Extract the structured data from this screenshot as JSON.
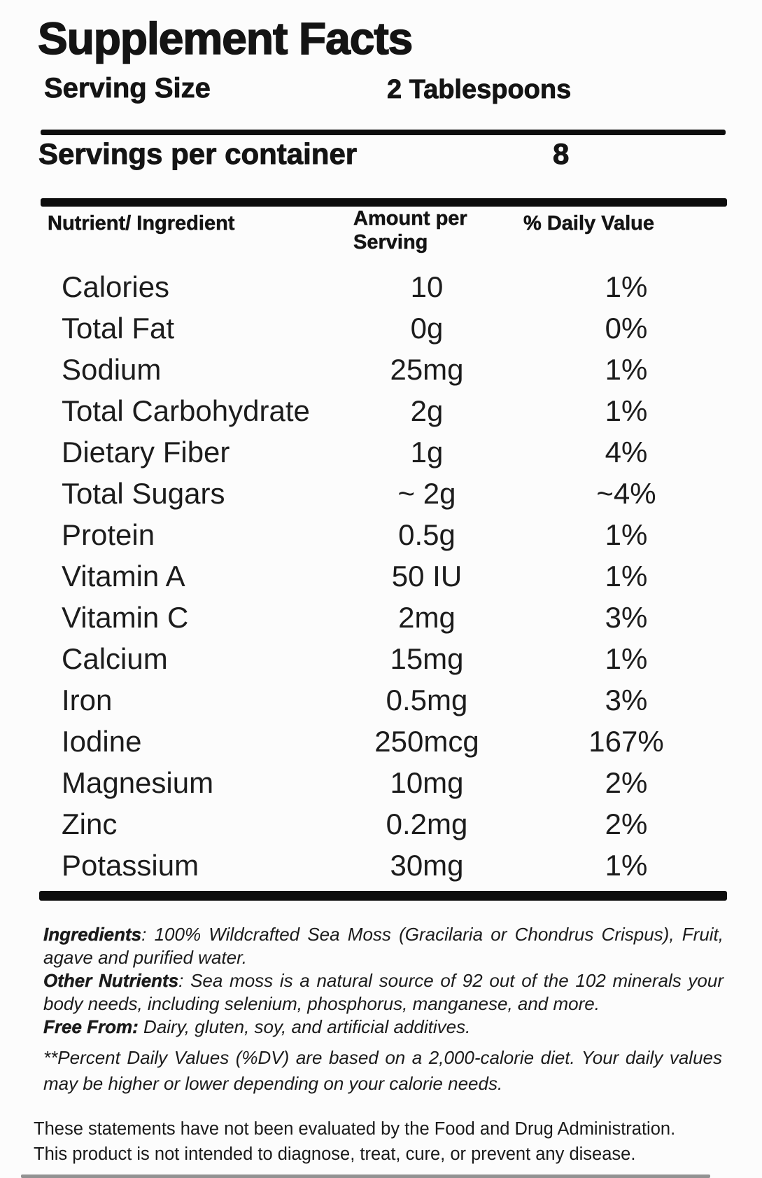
{
  "colors": {
    "background": "#fcfcfc",
    "text": "#141414",
    "bar": "#0d0d0d",
    "bottom_bar": "#6f6f6f"
  },
  "label": {
    "title": "Supplement Facts",
    "serving_size": {
      "label": "Serving Size",
      "value": "2 Tablespoons"
    },
    "servings_per_container": {
      "label": "Servings per container",
      "value": "8"
    },
    "table": {
      "columns": {
        "nutrient": "Nutrient/ Ingredient",
        "amount": "Amount per Serving",
        "daily_value": "% Daily Value"
      },
      "rows": [
        {
          "name": "Calories",
          "amount": "10",
          "dv": "1%"
        },
        {
          "name": "Total Fat",
          "amount": "0g",
          "dv": "0%"
        },
        {
          "name": "Sodium",
          "amount": "25mg",
          "dv": "1%"
        },
        {
          "name": "Total Carbohydrate",
          "amount": "2g",
          "dv": "1%"
        },
        {
          "name": "Dietary Fiber",
          "amount": "1g",
          "dv": "4%"
        },
        {
          "name": "Total Sugars",
          "amount": "~ 2g",
          "dv": "~4%"
        },
        {
          "name": "Protein",
          "amount": "0.5g",
          "dv": "1%"
        },
        {
          "name": "Vitamin A",
          "amount": "50 IU",
          "dv": "1%"
        },
        {
          "name": "Vitamin C",
          "amount": "2mg",
          "dv": "3%"
        },
        {
          "name": "Calcium",
          "amount": "15mg",
          "dv": "1%"
        },
        {
          "name": "Iron",
          "amount": "0.5mg",
          "dv": "3%"
        },
        {
          "name": "Iodine",
          "amount": "250mcg",
          "dv": "167%"
        },
        {
          "name": "Magnesium",
          "amount": "10mg",
          "dv": "2%"
        },
        {
          "name": "Zinc",
          "amount": "0.2mg",
          "dv": "2%"
        },
        {
          "name": "Potassium",
          "amount": "30mg",
          "dv": "1%"
        }
      ]
    },
    "info_sections": [
      {
        "lead": "Ingredients",
        "sep": ": ",
        "text": "100% Wildcrafted Sea Moss (Gracilaria or Chondrus Crispus), Fruit, agave and purified water."
      },
      {
        "lead": "Other Nutrients",
        "sep": ": ",
        "text": "Sea moss is a natural source of 92 out of the 102 minerals your body needs, including selenium, phosphorus, manganese, and more."
      },
      {
        "lead": "Free From:",
        "sep": " ",
        "text": "Dairy, gluten, soy, and artificial additives."
      }
    ],
    "footnote": "**Percent Daily Values (%DV) are based on a 2,000-calorie diet. Your daily values may be higher or lower depending on your calorie needs.",
    "disclaimer_lines": [
      "These statements have not been evaluated by the Food and Drug Administration.",
      "This product is not intended to diagnose, treat, cure, or prevent any disease."
    ]
  }
}
